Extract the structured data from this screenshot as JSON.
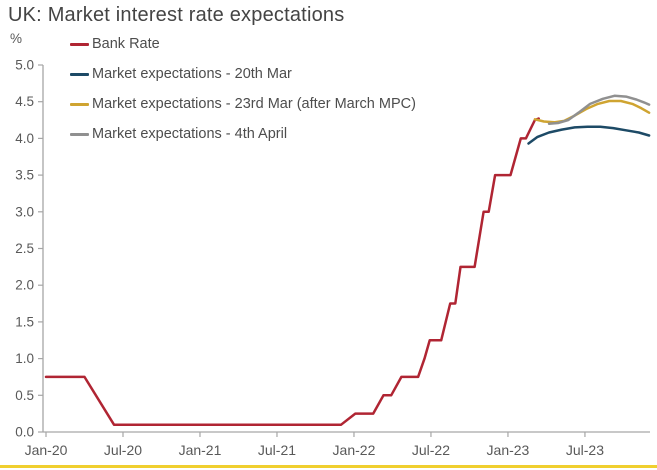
{
  "accent_bar_color": "#f0cf2e",
  "axis_color": "#a6a6a6",
  "label_color": "#595959",
  "title_color": "#444444",
  "chart_data": {
    "type": "line",
    "title": "UK: Market interest rate expectations",
    "unit_label": "%",
    "xlabel": "",
    "ylabel": "%",
    "ylim": [
      0.0,
      5.0
    ],
    "xlim_months_from_jan2020": [
      0,
      47.5
    ],
    "grid": false,
    "legend_position": "top-left",
    "y_axis": {
      "labels": [
        "5.0",
        "4.5",
        "4.0",
        "3.5",
        "3.0",
        "2.5",
        "2.0",
        "1.5",
        "1.0",
        "0.5",
        "0.0"
      ],
      "values": [
        5.0,
        4.5,
        4.0,
        3.5,
        3.0,
        2.5,
        2.0,
        1.5,
        1.0,
        0.5,
        0.0
      ]
    },
    "x_axis": {
      "labels": [
        "Jan-20",
        "Jul-20",
        "Jan-21",
        "Jul-21",
        "Jan-22",
        "Jul-22",
        "Jan-23",
        "Jul-23"
      ],
      "month_positions": [
        0,
        6,
        12,
        18,
        24,
        30,
        36,
        42
      ]
    },
    "series": [
      {
        "name": "Bank Rate",
        "color": "#b02533",
        "points_month_percent": [
          [
            0,
            0.75
          ],
          [
            3,
            0.75
          ],
          [
            5.3,
            0.1
          ],
          [
            23,
            0.1
          ],
          [
            24.1,
            0.25
          ],
          [
            25.5,
            0.25
          ],
          [
            26.3,
            0.5
          ],
          [
            26.9,
            0.5
          ],
          [
            27.7,
            0.75
          ],
          [
            29.0,
            0.75
          ],
          [
            29.5,
            1.0
          ],
          [
            29.9,
            1.25
          ],
          [
            30.8,
            1.25
          ],
          [
            31.5,
            1.75
          ],
          [
            31.9,
            1.75
          ],
          [
            32.3,
            2.25
          ],
          [
            33.4,
            2.25
          ],
          [
            34.1,
            3.0
          ],
          [
            34.5,
            3.0
          ],
          [
            35.0,
            3.5
          ],
          [
            36.2,
            3.5
          ],
          [
            37.0,
            4.0
          ],
          [
            37.4,
            4.0
          ],
          [
            38.1,
            4.25
          ],
          [
            38.4,
            4.27
          ]
        ]
      },
      {
        "name": "Market expectations - 20th Mar",
        "color": "#1d4a66",
        "points_month_percent": [
          [
            37.6,
            3.93
          ],
          [
            38.3,
            4.02
          ],
          [
            39.2,
            4.08
          ],
          [
            40.2,
            4.12
          ],
          [
            41.2,
            4.15
          ],
          [
            42.2,
            4.16
          ],
          [
            43.2,
            4.16
          ],
          [
            44.2,
            4.14
          ],
          [
            45.2,
            4.11
          ],
          [
            46.2,
            4.08
          ],
          [
            47.0,
            4.04
          ]
        ]
      },
      {
        "name": "Market expectations - 23rd Mar (after March MPC)",
        "color": "#cfa431",
        "points_month_percent": [
          [
            38.1,
            4.26
          ],
          [
            38.8,
            4.23
          ],
          [
            39.6,
            4.22
          ],
          [
            40.4,
            4.24
          ],
          [
            41.2,
            4.31
          ],
          [
            42.1,
            4.4
          ],
          [
            43.0,
            4.47
          ],
          [
            43.9,
            4.51
          ],
          [
            44.8,
            4.51
          ],
          [
            45.7,
            4.47
          ],
          [
            46.4,
            4.41
          ],
          [
            47.0,
            4.35
          ]
        ]
      },
      {
        "name": "Market expectations - 4th April",
        "color": "#909090",
        "points_month_percent": [
          [
            39.2,
            4.2
          ],
          [
            39.9,
            4.21
          ],
          [
            40.7,
            4.25
          ],
          [
            41.5,
            4.35
          ],
          [
            42.4,
            4.47
          ],
          [
            43.4,
            4.54
          ],
          [
            44.3,
            4.58
          ],
          [
            45.2,
            4.57
          ],
          [
            46.0,
            4.53
          ],
          [
            46.6,
            4.49
          ],
          [
            47.0,
            4.46
          ]
        ]
      }
    ]
  }
}
